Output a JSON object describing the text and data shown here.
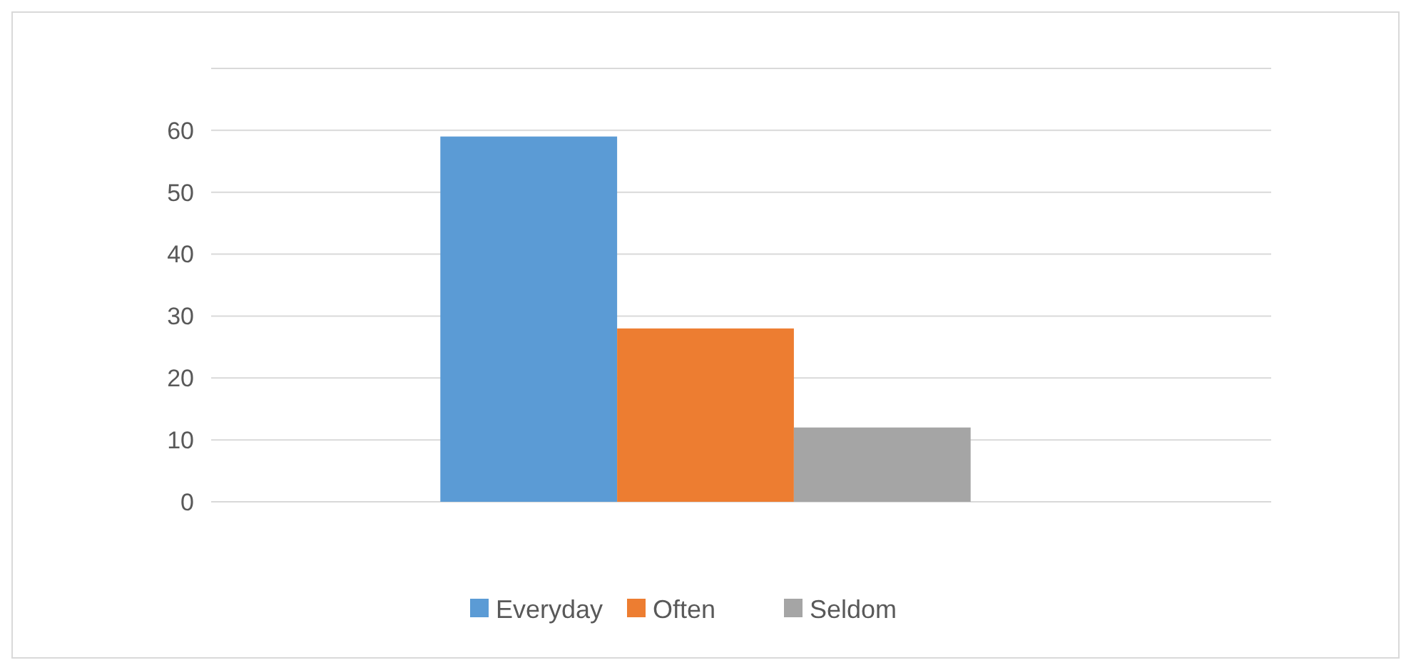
{
  "chart_data": {
    "type": "bar",
    "categories": [
      null
    ],
    "series": [
      {
        "name": "Everyday",
        "color": "#5b9bd5",
        "values": [
          59
        ]
      },
      {
        "name": "Often",
        "color": "#ed7d31",
        "values": [
          28
        ]
      },
      {
        "name": "Seldom",
        "color": "#a5a5a5",
        "values": [
          12
        ]
      }
    ],
    "ylim": [
      0,
      70
    ],
    "yticks": [
      0,
      10,
      20,
      30,
      40,
      50,
      60,
      {
        "value": 70,
        "label": null
      }
    ],
    "grid": true,
    "legend": "bottom"
  }
}
